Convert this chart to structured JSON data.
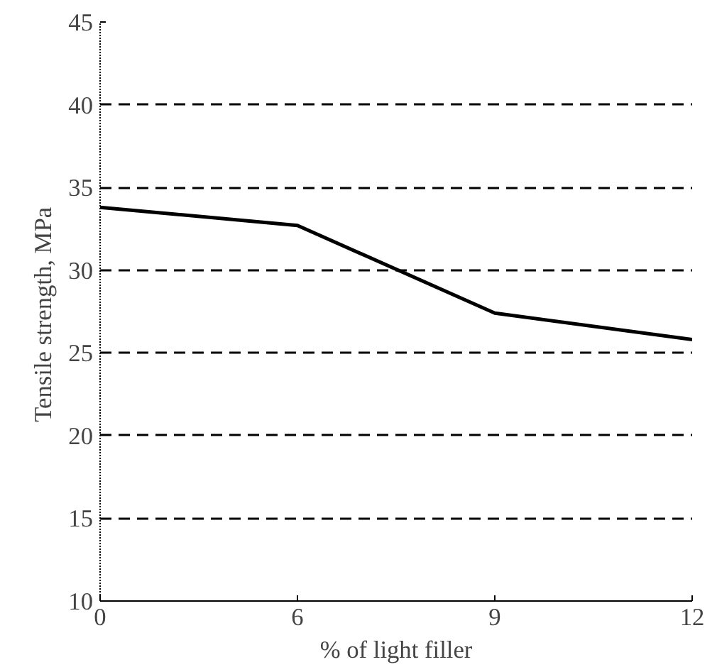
{
  "chart_data": {
    "type": "line",
    "xlabel": "% of light filler",
    "ylabel": "Tensile strength,  MPa",
    "categories": [
      "0",
      "6",
      "9",
      "12"
    ],
    "series": [
      {
        "color": "#000000",
        "values": [
          33.8,
          32.7,
          27.4,
          25.8
        ]
      }
    ],
    "ylim": [
      10,
      45
    ],
    "yticks": [
      10,
      15,
      20,
      25,
      30,
      35,
      40,
      45
    ],
    "grid": "y",
    "line_style": "solid",
    "marker": "none"
  }
}
